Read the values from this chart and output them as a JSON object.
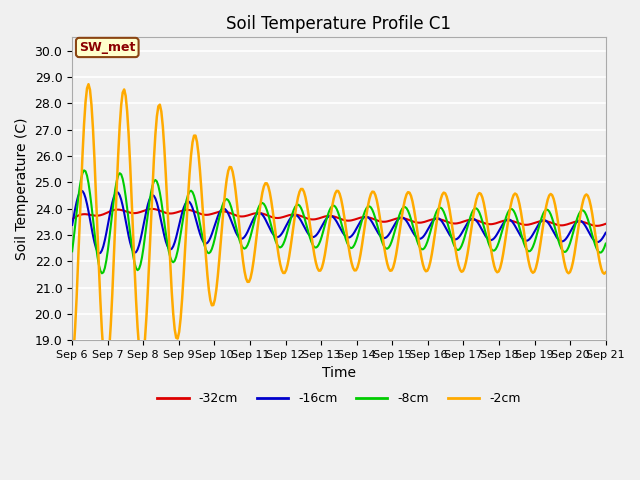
{
  "title": "Soil Temperature Profile C1",
  "xlabel": "Time",
  "ylabel": "Soil Temperature (C)",
  "ylim": [
    19.0,
    30.5
  ],
  "yticks": [
    19.0,
    20.0,
    21.0,
    22.0,
    23.0,
    24.0,
    25.0,
    26.0,
    27.0,
    28.0,
    29.0,
    30.0
  ],
  "plot_bg_color": "#f0f0f0",
  "fig_bg_color": "#f0f0f0",
  "annotation_box": "SW_met",
  "annotation_color": "#8B0000",
  "annotation_bg": "#ffffcc",
  "annotation_border": "#8B4513",
  "series": {
    "-32cm": {
      "color": "#dd0000",
      "linewidth": 1.5
    },
    "-16cm": {
      "color": "#0000cc",
      "linewidth": 1.5
    },
    "-8cm": {
      "color": "#00cc00",
      "linewidth": 1.5
    },
    "-2cm": {
      "color": "#ffaa00",
      "linewidth": 1.8
    }
  },
  "tick_labels": [
    "Sep 6",
    "Sep 7",
    "Sep 8",
    "Sep 9",
    "Sep 10",
    "Sep 11",
    "Sep 12",
    "Sep 13",
    "Sep 14",
    "Sep 15",
    "Sep 16",
    "Sep 17",
    "Sep 18",
    "Sep 19",
    "Sep 20",
    "Sep 21"
  ]
}
